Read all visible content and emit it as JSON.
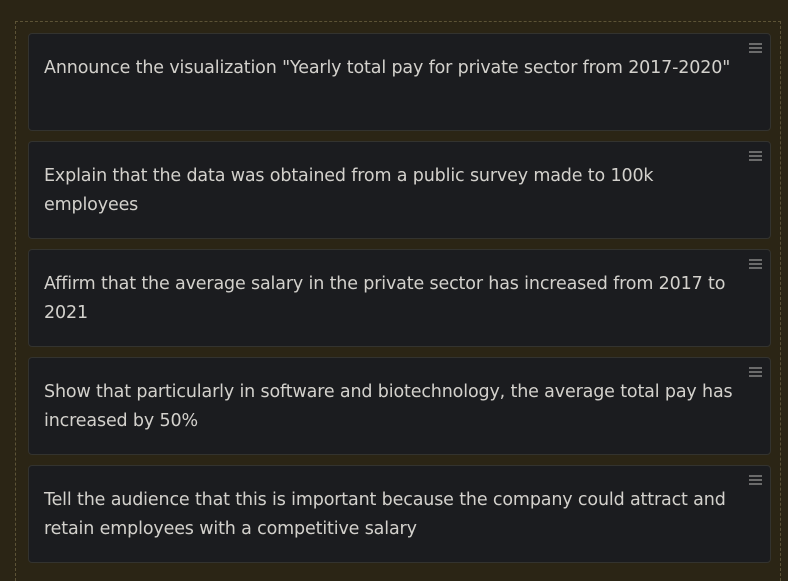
{
  "steps": [
    {
      "text": "Announce the visualization \"Yearly total pay for private sector from 2017-2020\""
    },
    {
      "text": "Explain that the data was obtained from a public survey made to 100k employees"
    },
    {
      "text": "Affirm that the average salary in the private sector has increased from 2017 to 2021"
    },
    {
      "text": "Show that particularly in software and biotechnology, the average total pay has increased by 50%"
    },
    {
      "text": "Tell the audience that this is important because the company could attract and retain employees with a competitive salary"
    }
  ],
  "icons": {
    "handle": "drag-handle-icon"
  }
}
